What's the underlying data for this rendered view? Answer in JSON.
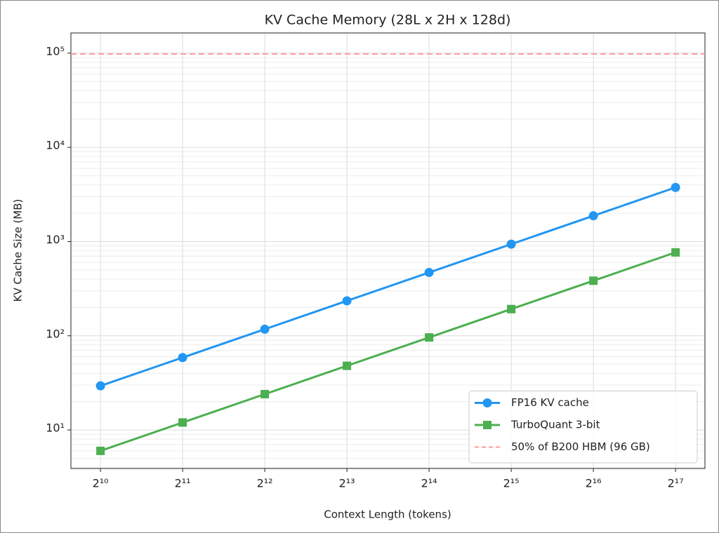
{
  "chart_data": {
    "type": "line",
    "title": "KV Cache Memory (28L x 2H x 128d)",
    "x_label": "Context Length (tokens)",
    "y_label": "KV Cache Size (MB)",
    "x": [
      1024,
      2048,
      4096,
      8192,
      16384,
      32768,
      65536,
      131072
    ],
    "series": [
      {
        "name": "FP16 KV cache",
        "color": "#2196f3",
        "marker": "circle",
        "values": [
          29.4,
          58.7,
          117.4,
          234.9,
          469.8,
          939.5,
          1879,
          3758
        ]
      },
      {
        "name": "TurboQuant 3-bit",
        "color": "#4caf50",
        "marker": "square",
        "values": [
          6,
          12,
          24,
          48,
          96,
          192,
          384,
          768
        ]
      }
    ],
    "hlines": [
      {
        "name": "50% of B200 HBM (96 GB)",
        "value": 98304,
        "color": "#ff9999",
        "dash": true
      }
    ],
    "xscale": "log2",
    "yscale": "log",
    "xlim": [
      798,
      168000
    ],
    "ylim": [
      3.9,
      164000
    ],
    "xticks": [
      {
        "value": 1024,
        "label": "2¹⁰"
      },
      {
        "value": 2048,
        "label": "2¹¹"
      },
      {
        "value": 4096,
        "label": "2¹²"
      },
      {
        "value": 8192,
        "label": "2¹³"
      },
      {
        "value": 16384,
        "label": "2¹⁴"
      },
      {
        "value": 32768,
        "label": "2¹⁵"
      },
      {
        "value": 65536,
        "label": "2¹⁶"
      },
      {
        "value": 131072,
        "label": "2¹⁷"
      }
    ],
    "yticks": [
      {
        "value": 10,
        "label": "10¹"
      },
      {
        "value": 100,
        "label": "10²"
      },
      {
        "value": 1000,
        "label": "10³"
      },
      {
        "value": 10000,
        "label": "10⁴"
      },
      {
        "value": 100000,
        "label": "10⁵"
      }
    ],
    "grid": true,
    "minor_grid": true,
    "legend": "lower right"
  }
}
